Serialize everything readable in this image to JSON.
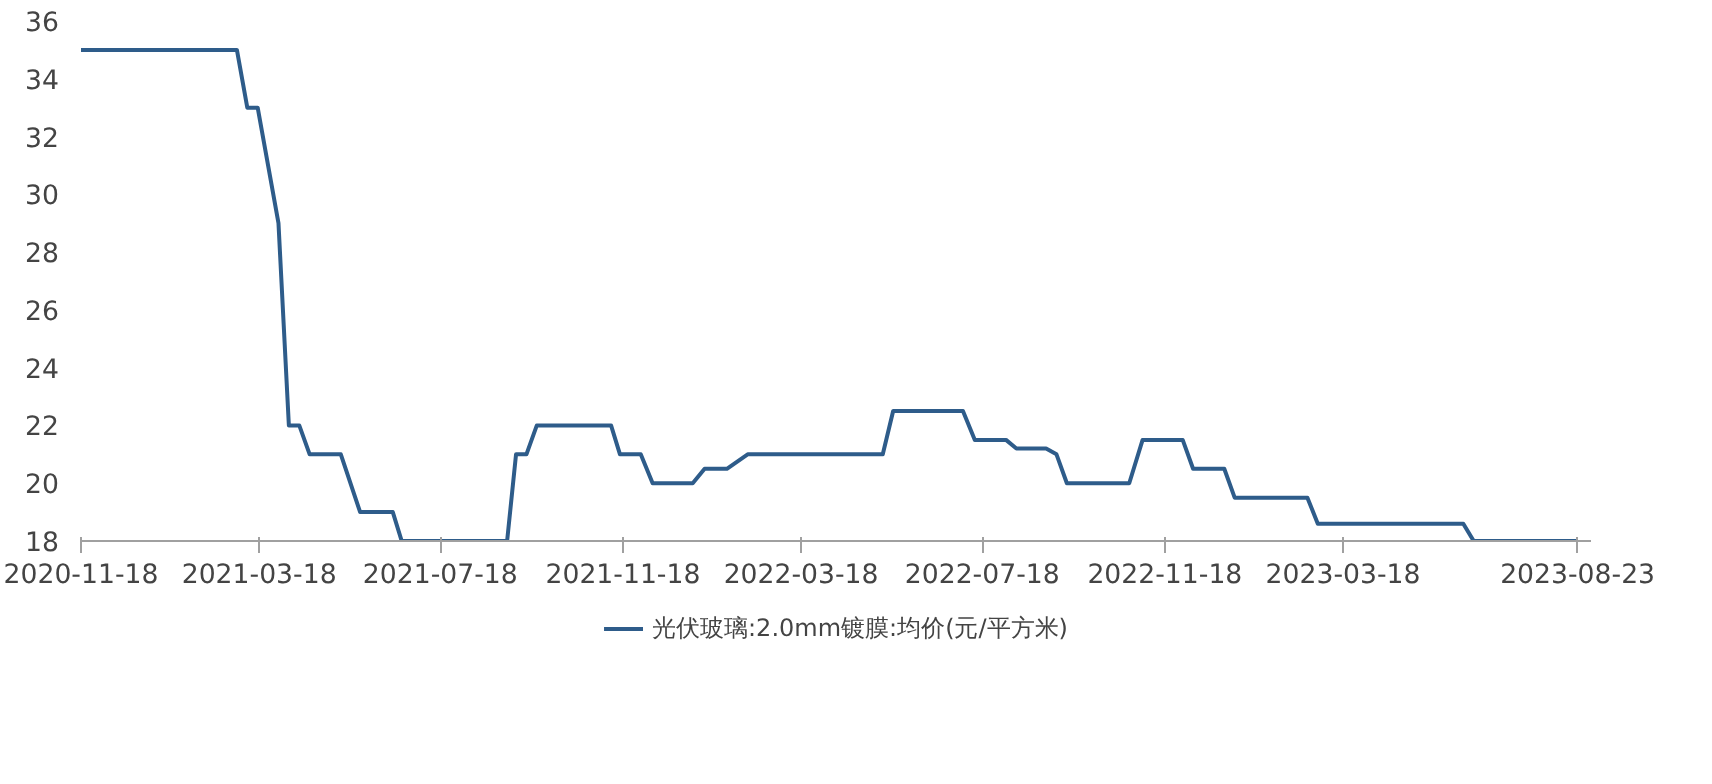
{
  "chart_data": {
    "type": "line",
    "x": [
      "2020-11-18",
      "2021-03-03",
      "2021-03-10",
      "2021-03-17",
      "2021-03-31",
      "2021-04-07",
      "2021-04-14",
      "2021-04-21",
      "2021-05-12",
      "2021-05-25",
      "2021-06-16",
      "2021-06-22",
      "2021-09-01",
      "2021-09-07",
      "2021-09-14",
      "2021-09-21",
      "2021-11-10",
      "2021-11-16",
      "2021-11-30",
      "2021-12-08",
      "2022-01-04",
      "2022-01-12",
      "2022-01-27",
      "2022-02-10",
      "2022-05-12",
      "2022-05-19",
      "2022-07-05",
      "2022-07-13",
      "2022-08-03",
      "2022-08-10",
      "2022-08-30",
      "2022-09-06",
      "2022-09-13",
      "2022-10-25",
      "2022-11-03",
      "2022-11-30",
      "2022-12-07",
      "2022-12-28",
      "2023-01-04",
      "2023-02-22",
      "2023-03-01",
      "2023-06-07",
      "2023-06-14",
      "2023-08-23"
    ],
    "series": [
      {
        "name": "光伏玻璃:2.0mm镀膜:均价(元/平方米)",
        "color": "#2e5c8a",
        "values": [
          35,
          35,
          33,
          33,
          29,
          22,
          22,
          21,
          21,
          19,
          19,
          18,
          18,
          21,
          21,
          22,
          22,
          21,
          21,
          20,
          20,
          20.5,
          20.5,
          21,
          21,
          22.5,
          22.5,
          21.5,
          21.5,
          21.2,
          21.2,
          21,
          20,
          20,
          21.5,
          21.5,
          20.5,
          20.5,
          19.5,
          19.5,
          18.6,
          18.6,
          18,
          18
        ]
      }
    ],
    "xlim": [
      "2020-11-18",
      "2023-09-01"
    ],
    "xticks": [
      "2020-11-18",
      "2021-03-18",
      "2021-07-18",
      "2021-11-18",
      "2022-03-18",
      "2022-07-18",
      "2022-11-18",
      "2023-03-18",
      "2023-08-23"
    ],
    "ylim": [
      18,
      36
    ],
    "yticks": [
      18,
      20,
      22,
      24,
      26,
      28,
      30,
      32,
      34,
      36
    ],
    "grid": false,
    "legend": "bottom",
    "marker": "none",
    "line_style": "solid"
  }
}
